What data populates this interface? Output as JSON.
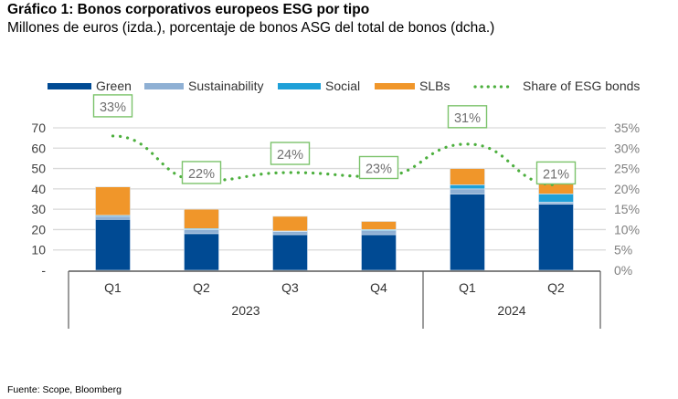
{
  "title": "Gráfico 1: Bonos corporativos europeos ESG por tipo",
  "subtitle": "Millones de euros (izda.), porcentaje de bonos ASG del total de bonos (dcha.)",
  "source": "Fuente: Scope, Bloomberg",
  "chart_data": {
    "type": "bar",
    "stacked": true,
    "title": "Gráfico 1: Bonos corporativos europeos ESG por tipo",
    "subtitle": "Millones de euros (izda.), porcentaje de bonos ASG del total de bonos (dcha.)",
    "categories": [
      "Q1",
      "Q2",
      "Q3",
      "Q4",
      "Q1",
      "Q2"
    ],
    "groups": [
      {
        "label": "2023",
        "count": 4
      },
      {
        "label": "2024",
        "count": 2
      }
    ],
    "series": [
      {
        "name": "Green",
        "color": "#004a93",
        "values": [
          25,
          18,
          17.5,
          17.5,
          37.5,
          32.5
        ]
      },
      {
        "name": "Sustainability",
        "color": "#8fb0d4",
        "values": [
          1.5,
          2,
          1.5,
          2,
          2.5,
          1
        ]
      },
      {
        "name": "Social",
        "color": "#1ea0d8",
        "values": [
          0.5,
          0.5,
          0.3,
          0.5,
          2,
          4
        ]
      },
      {
        "name": "SLBs",
        "color": "#f0962a",
        "values": [
          14,
          9.5,
          7.2,
          4,
          8,
          5.5
        ]
      }
    ],
    "line_series": {
      "name": "Share of ESG bonds",
      "color": "#4caf3d",
      "axis": "right",
      "values": [
        33,
        22,
        24,
        23,
        31,
        21
      ],
      "labels": [
        "33%",
        "22%",
        "24%",
        "23%",
        "31%",
        "21%"
      ]
    },
    "left_axis": {
      "ylim": [
        0,
        70
      ],
      "ticks": [
        "-",
        "10",
        "20",
        "30",
        "40",
        "50",
        "60",
        "70"
      ]
    },
    "right_axis": {
      "ylim": [
        0,
        35
      ],
      "ticks": [
        "0%",
        "5%",
        "10%",
        "15%",
        "20%",
        "25%",
        "30%",
        "35%"
      ]
    },
    "legend": {
      "position": "top",
      "entries": [
        "Green",
        "Sustainability",
        "Social",
        "SLBs",
        "Share of ESG bonds"
      ]
    },
    "grid": true,
    "xlabel": "",
    "ylabel": ""
  }
}
